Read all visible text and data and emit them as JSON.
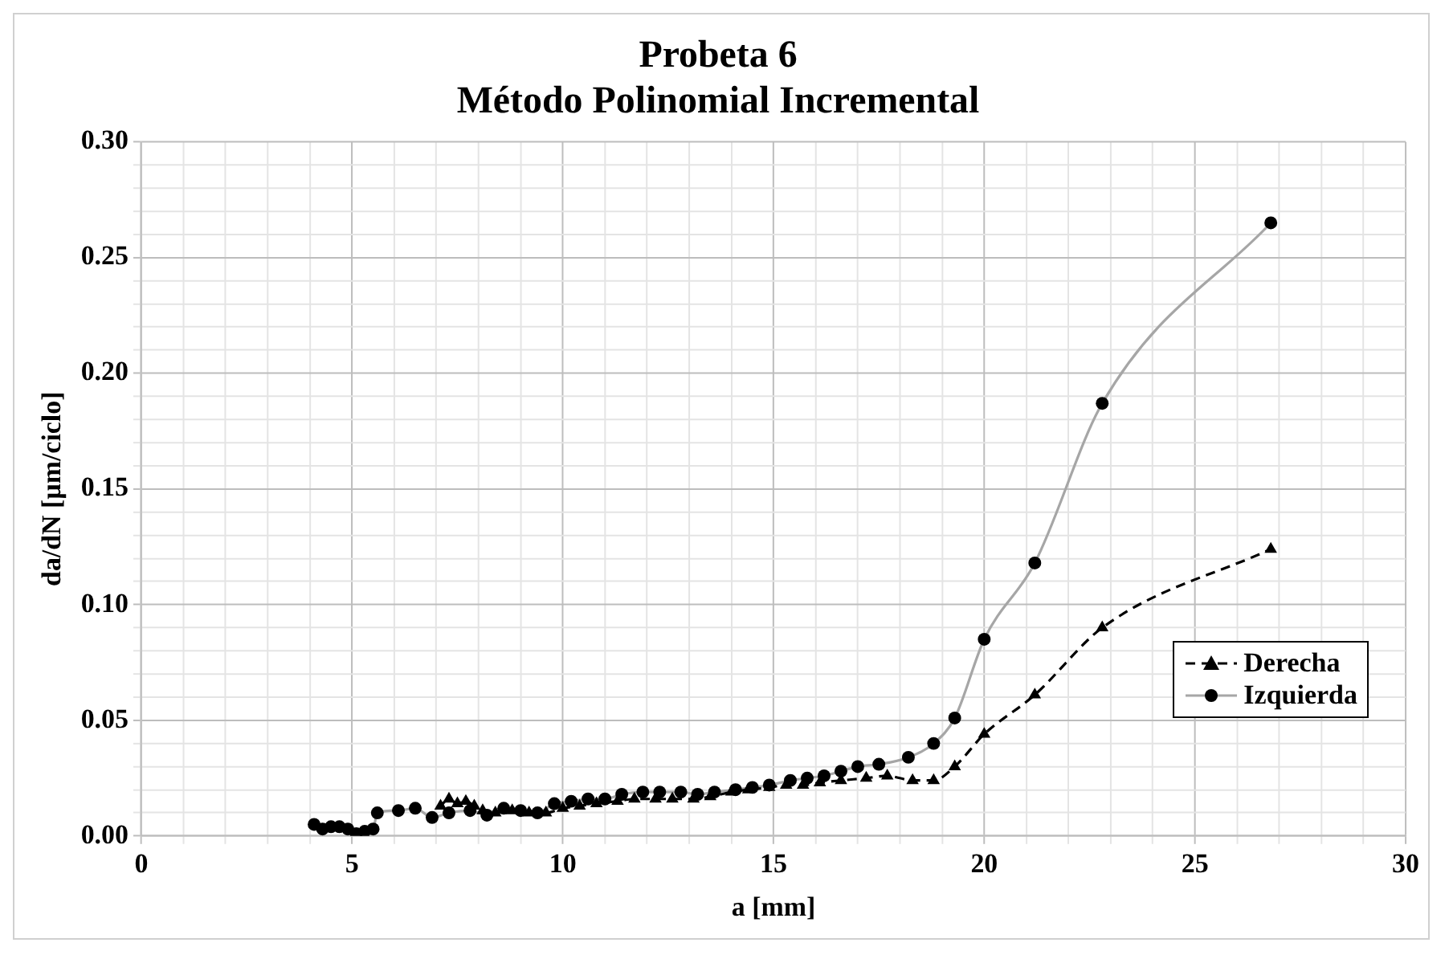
{
  "chart_data": {
    "type": "line",
    "title": "Probeta 6",
    "subtitle": "Método Polinomial Incremental",
    "xlabel": "a [mm]",
    "ylabel": "da/dN [µm/ciclo]",
    "xlim": [
      0,
      30
    ],
    "ylim": [
      0,
      0.3
    ],
    "xticks": [
      0,
      {
        "value": 1,
        "label": null
      },
      {
        "value": 2,
        "label": null
      },
      {
        "value": 3,
        "label": null
      },
      {
        "value": 4,
        "label": null
      },
      5,
      {
        "value": 6,
        "label": null
      },
      {
        "value": 7,
        "label": null
      },
      {
        "value": 8,
        "label": null
      },
      {
        "value": 9,
        "label": null
      },
      10,
      {
        "value": 11,
        "label": null
      },
      {
        "value": 12,
        "label": null
      },
      {
        "value": 13,
        "label": null
      },
      {
        "value": 14,
        "label": null
      },
      15,
      {
        "value": 16,
        "label": null
      },
      {
        "value": 17,
        "label": null
      },
      {
        "value": 18,
        "label": null
      },
      {
        "value": 19,
        "label": null
      },
      20,
      {
        "value": 21,
        "label": null
      },
      {
        "value": 22,
        "label": null
      },
      {
        "value": 23,
        "label": null
      },
      {
        "value": 24,
        "label": null
      },
      25,
      {
        "value": 26,
        "label": null
      },
      {
        "value": 27,
        "label": null
      },
      {
        "value": 28,
        "label": null
      },
      {
        "value": 29,
        "label": null
      },
      30
    ],
    "yticks": [
      {
        "value": 0,
        "label": "0.00"
      },
      {
        "value": 0.01,
        "label": null
      },
      {
        "value": 0.02,
        "label": null
      },
      {
        "value": 0.03,
        "label": null
      },
      {
        "value": 0.04,
        "label": null
      },
      {
        "value": 0.05,
        "label": "0.05"
      },
      {
        "value": 0.06,
        "label": null
      },
      {
        "value": 0.07,
        "label": null
      },
      {
        "value": 0.08,
        "label": null
      },
      {
        "value": 0.09,
        "label": null
      },
      {
        "value": 0.1,
        "label": "0.10"
      },
      {
        "value": 0.11,
        "label": null
      },
      {
        "value": 0.12,
        "label": null
      },
      {
        "value": 0.13,
        "label": null
      },
      {
        "value": 0.14,
        "label": null
      },
      {
        "value": 0.15,
        "label": "0.15"
      },
      {
        "value": 0.16,
        "label": null
      },
      {
        "value": 0.17,
        "label": null
      },
      {
        "value": 0.18,
        "label": null
      },
      {
        "value": 0.19,
        "label": null
      },
      {
        "value": 0.2,
        "label": "0.20"
      },
      {
        "value": 0.21,
        "label": null
      },
      {
        "value": 0.22,
        "label": null
      },
      {
        "value": 0.23,
        "label": null
      },
      {
        "value": 0.24,
        "label": null
      },
      {
        "value": 0.25,
        "label": "0.25"
      },
      {
        "value": 0.26,
        "label": null
      },
      {
        "value": 0.27,
        "label": null
      },
      {
        "value": 0.28,
        "label": null
      },
      {
        "value": 0.29,
        "label": null
      },
      {
        "value": 0.3,
        "label": "0.30"
      }
    ],
    "grid": true,
    "legend": "bottom right",
    "series": [
      {
        "name": "Derecha",
        "color": "#000000",
        "marker": "triangle",
        "line_style": "dashed",
        "x": [
          7.1,
          7.3,
          7.5,
          7.7,
          7.9,
          8.1,
          8.4,
          8.8,
          9.2,
          9.6,
          10.0,
          10.4,
          10.8,
          11.3,
          11.7,
          12.2,
          12.6,
          13.1,
          13.5,
          14.0,
          14.4,
          14.9,
          15.3,
          15.7,
          16.1,
          16.6,
          17.2,
          17.7,
          18.3,
          18.8,
          19.3,
          20.0,
          21.2,
          22.8,
          26.8
        ],
        "values": [
          0.013,
          0.016,
          0.014,
          0.015,
          0.013,
          0.011,
          0.01,
          0.011,
          0.01,
          0.01,
          0.012,
          0.013,
          0.014,
          0.015,
          0.016,
          0.016,
          0.016,
          0.016,
          0.017,
          0.019,
          0.02,
          0.021,
          0.022,
          0.022,
          0.023,
          0.024,
          0.025,
          0.026,
          0.024,
          0.024,
          0.03,
          0.044,
          0.061,
          0.09,
          0.124
        ]
      },
      {
        "name": "Izquierda",
        "color": "#a6a6a6",
        "marker": "circle",
        "line_style": "solid",
        "x": [
          4.1,
          4.3,
          4.5,
          4.7,
          4.9,
          5.1,
          5.3,
          5.5,
          5.6,
          6.1,
          6.5,
          6.9,
          7.3,
          7.8,
          8.2,
          8.6,
          9.0,
          9.4,
          9.8,
          10.2,
          10.6,
          11.0,
          11.4,
          11.9,
          12.3,
          12.8,
          13.2,
          13.6,
          14.1,
          14.5,
          14.9,
          15.4,
          15.8,
          16.2,
          16.6,
          17.0,
          17.5,
          18.2,
          18.8,
          19.3,
          20.0,
          21.2,
          22.8,
          26.8
        ],
        "values": [
          0.005,
          0.003,
          0.004,
          0.004,
          0.003,
          0.001,
          0.002,
          0.003,
          0.01,
          0.011,
          0.012,
          0.008,
          0.01,
          0.011,
          0.009,
          0.012,
          0.011,
          0.01,
          0.014,
          0.015,
          0.016,
          0.016,
          0.018,
          0.019,
          0.019,
          0.019,
          0.018,
          0.019,
          0.02,
          0.021,
          0.022,
          0.024,
          0.025,
          0.026,
          0.028,
          0.03,
          0.031,
          0.034,
          0.04,
          0.051,
          0.085,
          0.118,
          0.187,
          0.265
        ]
      }
    ]
  }
}
